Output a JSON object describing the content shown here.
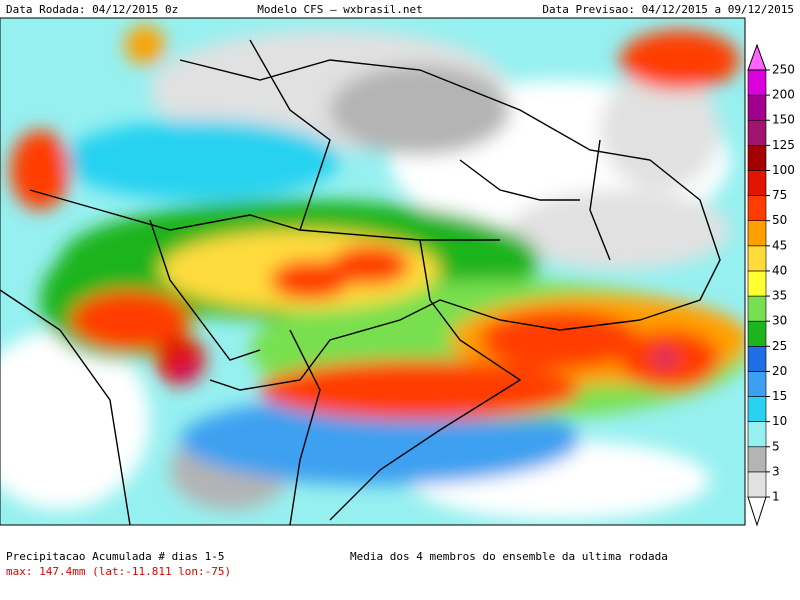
{
  "header": {
    "left": "Data Rodada: 04/12/2015 0z",
    "center": "Modelo CFS — wxbrasil.net",
    "right": "Data Previsao: 04/12/2015 a 09/12/2015"
  },
  "colorbar": {
    "levels": [
      1,
      3,
      5,
      10,
      15,
      20,
      25,
      30,
      35,
      40,
      45,
      50,
      75,
      100,
      125,
      150,
      200,
      250
    ],
    "colors": [
      "#ffffff",
      "#e1e1e1",
      "#b4b4b4",
      "#96f0f0",
      "#28d2f0",
      "#3ca0f0",
      "#1e6ee6",
      "#1eb41e",
      "#78e050",
      "#ffff32",
      "#ffdc3c",
      "#ffa000",
      "#ff3c00",
      "#e11400",
      "#a50000",
      "#a0146e",
      "#a0008c",
      "#dc00dc",
      "#ff64ff"
    ]
  },
  "footer": {
    "title": "Precipitacao Acumulada # dias 1-5",
    "max": "max: 147.4mm (lat:-11.811 lon:-75)",
    "note": "Media dos 4 membros do ensemble da ultima rodada"
  }
}
